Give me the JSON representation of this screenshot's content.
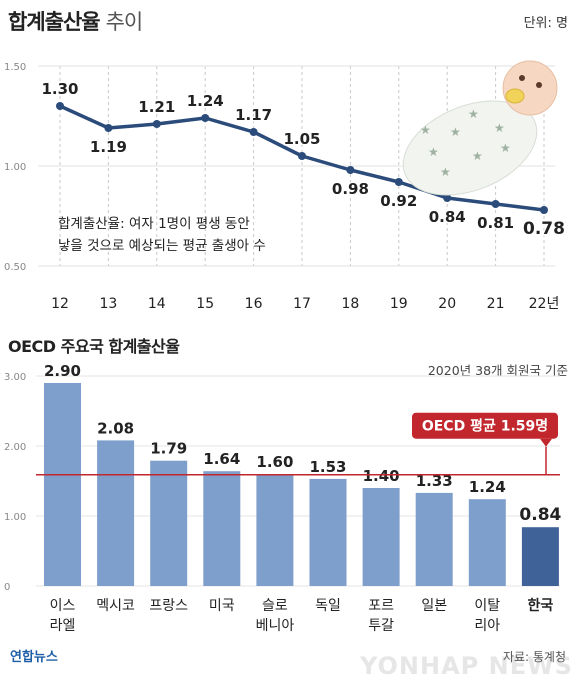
{
  "header": {
    "title": "합계출산율",
    "title_suffix": "추이",
    "unit": "단위: 명"
  },
  "note": {
    "line1": "합계출산율: 여자 1명이 평생 동안",
    "line2": "낳을 것으로 예상되는 평균 출생아 수"
  },
  "bar_section": {
    "title": "OECD 주요국 합계출산율",
    "basis": "2020년 38개 회원국 기준",
    "avg_label": "OECD 평균 1.59명"
  },
  "footer": {
    "source": "자료: 통계청",
    "logo": "연합뉴스",
    "watermark": "YONHAP NEWS"
  },
  "colors": {
    "line": "#2b4b7a",
    "bar": "#7e9fcb",
    "bar_highlight": "#3f6398",
    "avg_line": "#c1272d",
    "avg_badge": "#c1272d"
  },
  "chart_data": [
    {
      "type": "line",
      "title": "합계출산율 추이",
      "x": [
        "12",
        "13",
        "14",
        "15",
        "16",
        "17",
        "18",
        "19",
        "20",
        "21",
        "22년"
      ],
      "series": [
        {
          "values": [
            1.3,
            1.19,
            1.21,
            1.24,
            1.17,
            1.05,
            0.98,
            0.92,
            0.84,
            0.81,
            0.78
          ]
        }
      ],
      "yticks": [
        "1.50",
        "1.00",
        "0.50"
      ],
      "ylim": [
        0.5,
        1.5
      ],
      "grid": "vertical dashed"
    },
    {
      "type": "bar",
      "title": "OECD 주요국 합계출산율",
      "categories": [
        [
          "이스",
          "라엘"
        ],
        [
          "멕시코"
        ],
        [
          "프랑스"
        ],
        [
          "미국"
        ],
        [
          "슬로",
          "베니아"
        ],
        [
          "독일"
        ],
        [
          "포르",
          "투갈"
        ],
        [
          "일본"
        ],
        [
          "이탈",
          "리아"
        ],
        [
          "한국"
        ]
      ],
      "values": [
        2.9,
        2.08,
        1.79,
        1.64,
        1.6,
        1.53,
        1.4,
        1.33,
        1.24,
        0.84
      ],
      "value_labels": [
        "2.90",
        "2.08",
        "1.79",
        "1.64",
        "1.60",
        "1.53",
        "1.40",
        "1.33",
        "1.24",
        "0.84"
      ],
      "highlight": "한국",
      "average": 1.59,
      "yticks": [
        "3.00",
        "2.00",
        "1.00",
        "0"
      ],
      "ylim": [
        0,
        3.0
      ]
    }
  ]
}
